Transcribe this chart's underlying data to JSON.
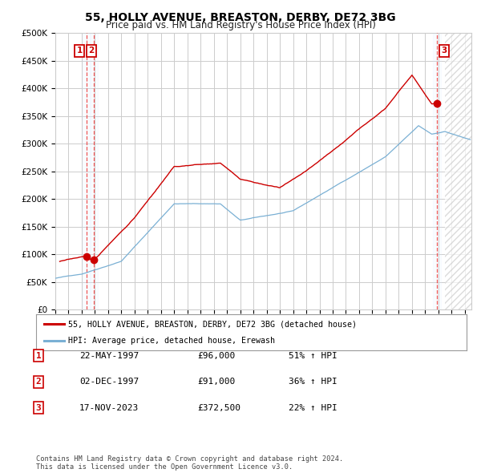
{
  "title": "55, HOLLY AVENUE, BREASTON, DERBY, DE72 3BG",
  "subtitle": "Price paid vs. HM Land Registry's House Price Index (HPI)",
  "ylim": [
    0,
    500000
  ],
  "xlim_start": 1995.0,
  "xlim_end": 2026.5,
  "transactions": [
    {
      "label": "1",
      "date": "22-MAY-1997",
      "price": 96000,
      "hpi_pct": "51%",
      "x": 1997.38
    },
    {
      "label": "2",
      "date": "02-DEC-1997",
      "price": 91000,
      "hpi_pct": "36%",
      "x": 1997.92
    },
    {
      "label": "3",
      "date": "17-NOV-2023",
      "price": 372500,
      "hpi_pct": "22%",
      "x": 2023.87
    }
  ],
  "legend_line1": "55, HOLLY AVENUE, BREASTON, DERBY, DE72 3BG (detached house)",
  "legend_line2": "HPI: Average price, detached house, Erewash",
  "footnote": "Contains HM Land Registry data © Crown copyright and database right 2024.\nThis data is licensed under the Open Government Licence v3.0.",
  "red_line_color": "#cc0000",
  "blue_line_color": "#7ab0d4",
  "background_color": "#ffffff",
  "grid_color": "#cccccc",
  "vline_color": "#ee4444",
  "dot_color": "#cc0000",
  "label_box_color": "#cc0000",
  "shading_color": "#ddeeff",
  "hatch_color": "#cccccc"
}
